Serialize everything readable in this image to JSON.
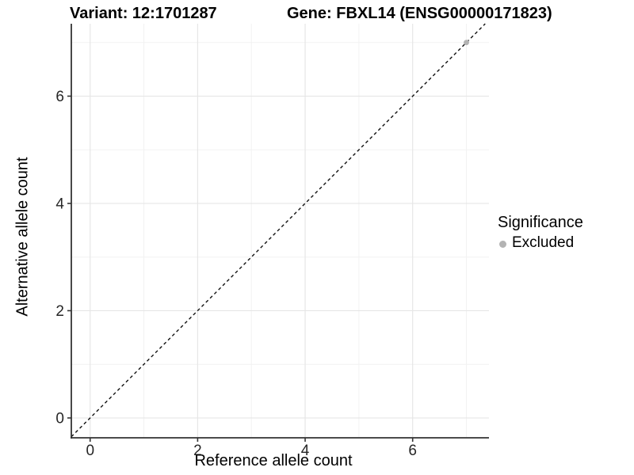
{
  "header": {
    "variant_title": "Variant: 12:1701287",
    "gene_title": "Gene: FBXL14 (ENSG00000171823)"
  },
  "legend": {
    "title": "Significance",
    "items": [
      {
        "label": "Excluded",
        "color": "#b3b3b3",
        "marker": "circle"
      }
    ]
  },
  "chart_data": {
    "type": "scatter",
    "title": "Variant: 12:1701287  /  Gene: FBXL14 (ENSG00000171823)",
    "xlabel": "Reference allele count",
    "ylabel": "Alternative allele count",
    "xlim": [
      -0.35,
      7.42
    ],
    "ylim": [
      -0.37,
      7.35
    ],
    "xticks": [
      0,
      2,
      4,
      6
    ],
    "yticks": [
      0,
      2,
      4,
      6
    ],
    "minor_xticks": [
      1,
      3,
      5,
      7
    ],
    "minor_yticks": [
      1,
      3,
      5,
      7
    ],
    "grid": true,
    "legend_position": "right",
    "series": [
      {
        "name": "Excluded",
        "color": "#b3b3b3",
        "points": [
          [
            7,
            7
          ]
        ]
      }
    ],
    "reference_line": {
      "description": "identity line y = x",
      "slope": 1,
      "intercept": 0,
      "style": "dashed",
      "color": "#111111"
    },
    "colors": {
      "background": "#ffffff",
      "grid_major": "#e6e6e6",
      "grid_minor": "#f2f2f2",
      "axis_line": "#333333",
      "excluded_point": "#b3b3b3"
    }
  }
}
